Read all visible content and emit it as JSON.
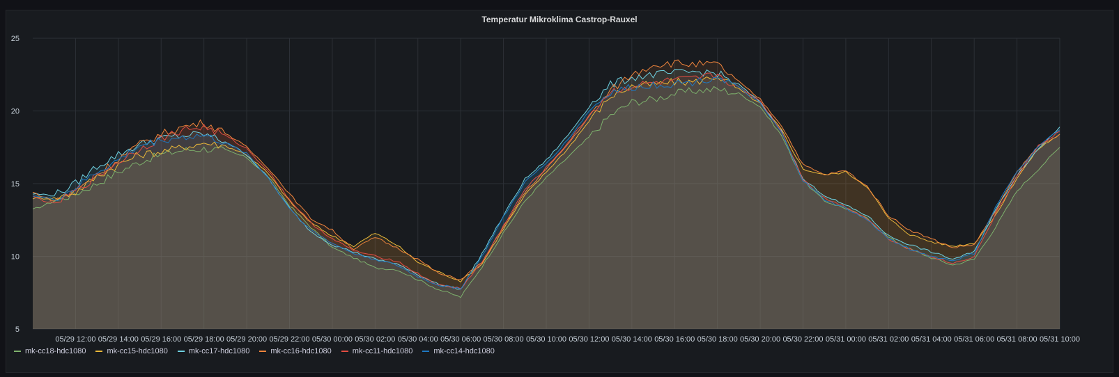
{
  "panel": {
    "title": "Temperatur Mikroklima Castrop-Rauxel"
  },
  "chart_data": {
    "type": "area",
    "title": "Temperatur Mikroklima Castrop-Rauxel",
    "xlabel": "",
    "ylabel": "",
    "ylim": [
      5,
      25
    ],
    "yticks": [
      5,
      10,
      15,
      20,
      25
    ],
    "grid": true,
    "legend": "bottom-left",
    "x_tick_labels": [
      "05/29 12:00",
      "05/29 14:00",
      "05/29 16:00",
      "05/29 18:00",
      "05/29 20:00",
      "05/29 22:00",
      "05/30 00:00",
      "05/30 02:00",
      "05/30 04:00",
      "05/30 06:00",
      "05/30 08:00",
      "05/30 10:00",
      "05/30 12:00",
      "05/30 14:00",
      "05/30 16:00",
      "05/30 18:00",
      "05/30 20:00",
      "05/30 22:00",
      "05/31 00:00",
      "05/31 02:00",
      "05/31 04:00",
      "05/31 06:00",
      "05/31 08:00",
      "05/31 10:00"
    ],
    "x_hours": [
      "05/29 10:00",
      "05/29 11:00",
      "05/29 12:00",
      "05/29 13:00",
      "05/29 14:00",
      "05/29 15:00",
      "05/29 16:00",
      "05/29 17:00",
      "05/29 18:00",
      "05/29 19:00",
      "05/29 20:00",
      "05/29 21:00",
      "05/29 22:00",
      "05/29 23:00",
      "05/30 00:00",
      "05/30 01:00",
      "05/30 02:00",
      "05/30 03:00",
      "05/30 04:00",
      "05/30 05:00",
      "05/30 06:00",
      "05/30 07:00",
      "05/30 08:00",
      "05/30 09:00",
      "05/30 10:00",
      "05/30 11:00",
      "05/30 12:00",
      "05/30 13:00",
      "05/30 14:00",
      "05/30 15:00",
      "05/30 16:00",
      "05/30 17:00",
      "05/30 18:00",
      "05/30 19:00",
      "05/30 20:00",
      "05/30 21:00",
      "05/30 22:00",
      "05/30 23:00",
      "05/31 00:00",
      "05/31 01:00",
      "05/31 02:00",
      "05/31 03:00",
      "05/31 04:00",
      "05/31 05:00",
      "05/31 06:00",
      "05/31 07:00",
      "05/31 08:00",
      "05/31 09:00",
      "05/31 10:00"
    ],
    "series": [
      {
        "name": "mk-cc18-hdc1080",
        "color": "#7eb26d",
        "values": [
          13.2,
          13.8,
          14.3,
          15.0,
          15.8,
          16.5,
          17.0,
          17.3,
          17.4,
          17.3,
          16.8,
          15.5,
          13.5,
          12.0,
          10.6,
          9.9,
          9.2,
          9.1,
          8.4,
          7.7,
          7.2,
          9.3,
          11.6,
          13.8,
          15.4,
          16.8,
          18.2,
          19.7,
          20.6,
          20.8,
          21.2,
          21.4,
          21.5,
          21.2,
          20.3,
          18.3,
          15.2,
          13.8,
          13.3,
          12.6,
          11.3,
          10.5,
          9.9,
          9.4,
          9.8,
          12.0,
          14.5,
          16.0,
          17.5
        ]
      },
      {
        "name": "mk-cc15-hdc1080",
        "color": "#eab839",
        "values": [
          14.0,
          14.0,
          14.4,
          15.5,
          16.3,
          17.0,
          17.2,
          17.5,
          17.8,
          17.6,
          17.0,
          15.7,
          13.8,
          12.3,
          11.4,
          10.7,
          11.6,
          10.8,
          9.6,
          8.9,
          8.3,
          9.5,
          11.9,
          14.2,
          15.8,
          17.4,
          19.3,
          21.0,
          21.7,
          21.8,
          22.0,
          22.0,
          22.4,
          21.5,
          20.5,
          18.7,
          16.0,
          15.6,
          15.8,
          14.8,
          12.6,
          11.5,
          11.0,
          10.7,
          10.9,
          12.8,
          15.4,
          17.4,
          18.4
        ]
      },
      {
        "name": "mk-cc17-hdc1080",
        "color": "#6ed0e0",
        "values": [
          14.3,
          14.2,
          15.0,
          16.2,
          17.0,
          17.7,
          18.1,
          18.3,
          18.4,
          17.9,
          17.0,
          15.4,
          13.3,
          11.7,
          10.8,
          10.3,
          9.8,
          9.5,
          8.7,
          8.1,
          7.7,
          10.2,
          12.8,
          15.3,
          16.6,
          18.3,
          20.3,
          21.8,
          22.3,
          22.5,
          22.6,
          22.7,
          22.6,
          21.8,
          20.6,
          18.6,
          15.3,
          14.2,
          13.5,
          12.8,
          11.4,
          10.8,
          10.3,
          9.8,
          10.3,
          13.2,
          15.6,
          17.4,
          18.9
        ]
      },
      {
        "name": "mk-cc16-hdc1080",
        "color": "#ef843c",
        "values": [
          14.4,
          13.8,
          14.5,
          15.6,
          16.7,
          17.7,
          18.4,
          18.9,
          19.2,
          18.5,
          17.5,
          16.1,
          14.3,
          12.6,
          11.8,
          10.5,
          11.3,
          10.6,
          9.8,
          8.8,
          8.4,
          9.6,
          12.0,
          14.4,
          16.0,
          17.7,
          19.6,
          21.4,
          22.5,
          23.2,
          23.3,
          23.2,
          23.2,
          22.0,
          20.8,
          19.0,
          16.3,
          15.6,
          15.9,
          14.8,
          12.8,
          11.8,
          11.2,
          10.6,
          10.8,
          13.1,
          15.8,
          17.6,
          18.4
        ]
      },
      {
        "name": "mk-cc11-hdc1080",
        "color": "#e24d42",
        "values": [
          14.1,
          13.6,
          14.5,
          15.5,
          16.5,
          17.4,
          18.1,
          18.7,
          18.9,
          18.3,
          17.4,
          15.9,
          13.9,
          12.3,
          11.2,
          10.4,
          10.0,
          9.7,
          8.8,
          8.0,
          7.8,
          9.6,
          12.1,
          14.6,
          16.1,
          17.8,
          19.7,
          21.3,
          21.7,
          21.9,
          22.1,
          22.2,
          22.5,
          21.6,
          20.7,
          18.6,
          15.3,
          14.0,
          13.4,
          12.6,
          11.2,
          10.5,
          10.0,
          9.5,
          10.0,
          12.9,
          15.5,
          17.6,
          18.6
        ]
      },
      {
        "name": "mk-cc14-hdc1080",
        "color": "#1f78c1",
        "values": [
          14.2,
          13.9,
          14.7,
          15.8,
          16.6,
          17.6,
          18.0,
          18.2,
          18.3,
          17.8,
          17.1,
          15.4,
          13.3,
          11.8,
          10.9,
          10.2,
          9.8,
          9.4,
          8.6,
          8.0,
          7.8,
          10.0,
          12.7,
          15.1,
          16.4,
          18.0,
          20.0,
          21.3,
          21.6,
          21.8,
          21.9,
          22.0,
          22.4,
          21.6,
          20.5,
          18.5,
          15.2,
          13.9,
          13.3,
          12.5,
          11.2,
          10.5,
          10.0,
          9.7,
          10.2,
          13.4,
          15.8,
          17.6,
          18.7
        ]
      }
    ]
  }
}
